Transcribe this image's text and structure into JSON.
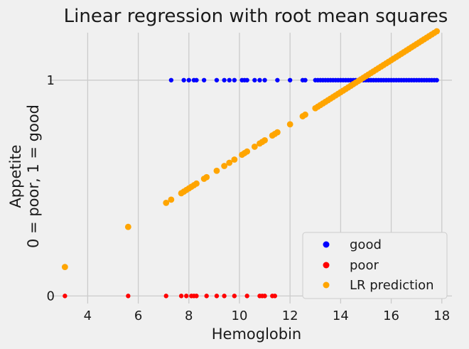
{
  "chart_data": {
    "type": "scatter",
    "title": "Linear regression with root mean squares",
    "xlabel": "Hemoglobin",
    "ylabel_lines": [
      "Appetite",
      "0 = poor, 1 = good"
    ],
    "xlim": [
      2.5,
      18.4
    ],
    "ylim": [
      -0.035,
      1.22
    ],
    "xticks": [
      4,
      6,
      8,
      10,
      12,
      14,
      16,
      18
    ],
    "xtick_labels": [
      "4",
      "6",
      "8",
      "10",
      "12",
      "14",
      "16",
      "18"
    ],
    "yticks": [
      0,
      1
    ],
    "ytick_labels": [
      "0",
      "1"
    ],
    "grid": true,
    "legend_position": "lower-right",
    "regression": {
      "intercept": -0.096,
      "slope": 0.0743
    },
    "series": [
      {
        "name": "good",
        "color": "#0000ff",
        "x": [
          7.3,
          7.8,
          8.0,
          8.2,
          8.3,
          8.6,
          9.1,
          9.4,
          9.6,
          9.8,
          10.1,
          10.2,
          10.3,
          10.6,
          10.8,
          11.0,
          11.5,
          12.0,
          12.5,
          12.6,
          13.0,
          13.1,
          13.2,
          13.3,
          13.4,
          13.5,
          13.6,
          13.7,
          13.8,
          13.9,
          14.0,
          14.1,
          14.2,
          14.3,
          14.4,
          14.5,
          14.6,
          14.7,
          14.8,
          14.9,
          15.0,
          15.1,
          15.2,
          15.3,
          15.4,
          15.5,
          15.6,
          15.7,
          15.8,
          15.9,
          16.0,
          16.1,
          16.2,
          16.3,
          16.4,
          16.5,
          16.6,
          16.7,
          16.8,
          16.9,
          17.0,
          17.1,
          17.2,
          17.3,
          17.4,
          17.5,
          17.6,
          17.7,
          17.8
        ],
        "y": [
          1,
          1,
          1,
          1,
          1,
          1,
          1,
          1,
          1,
          1,
          1,
          1,
          1,
          1,
          1,
          1,
          1,
          1,
          1,
          1,
          1,
          1,
          1,
          1,
          1,
          1,
          1,
          1,
          1,
          1,
          1,
          1,
          1,
          1,
          1,
          1,
          1,
          1,
          1,
          1,
          1,
          1,
          1,
          1,
          1,
          1,
          1,
          1,
          1,
          1,
          1,
          1,
          1,
          1,
          1,
          1,
          1,
          1,
          1,
          1,
          1,
          1,
          1,
          1,
          1,
          1,
          1,
          1,
          1
        ]
      },
      {
        "name": "poor",
        "color": "#ff0000",
        "x": [
          3.1,
          5.6,
          7.1,
          7.7,
          7.9,
          8.1,
          8.2,
          8.3,
          8.7,
          9.1,
          9.4,
          9.8,
          10.3,
          10.8,
          10.9,
          11.0,
          11.3,
          11.4
        ],
        "y": [
          0,
          0,
          0,
          0,
          0,
          0,
          0,
          0,
          0,
          0,
          0,
          0,
          0,
          0,
          0,
          0,
          0,
          0
        ]
      }
    ],
    "prediction": {
      "name": "LR prediction",
      "color": "#ffa500",
      "x": [
        3.1,
        5.6,
        7.1,
        7.3,
        7.7,
        7.8,
        7.9,
        8.0,
        8.1,
        8.2,
        8.3,
        8.6,
        8.7,
        9.1,
        9.4,
        9.6,
        9.8,
        10.1,
        10.2,
        10.3,
        10.6,
        10.8,
        10.9,
        11.0,
        11.3,
        11.4,
        11.5,
        12.0,
        12.5,
        12.6,
        13.0,
        13.1,
        13.2,
        13.3,
        13.4,
        13.5,
        13.6,
        13.7,
        13.8,
        13.9,
        14.0,
        14.1,
        14.2,
        14.3,
        14.4,
        14.5,
        14.6,
        14.7,
        14.8,
        14.9,
        15.0,
        15.1,
        15.2,
        15.3,
        15.4,
        15.5,
        15.6,
        15.7,
        15.8,
        15.9,
        16.0,
        16.1,
        16.2,
        16.3,
        16.4,
        16.5,
        16.6,
        16.7,
        16.8,
        16.9,
        17.0,
        17.1,
        17.2,
        17.3,
        17.4,
        17.5,
        17.6,
        17.7,
        17.8
      ]
    }
  }
}
